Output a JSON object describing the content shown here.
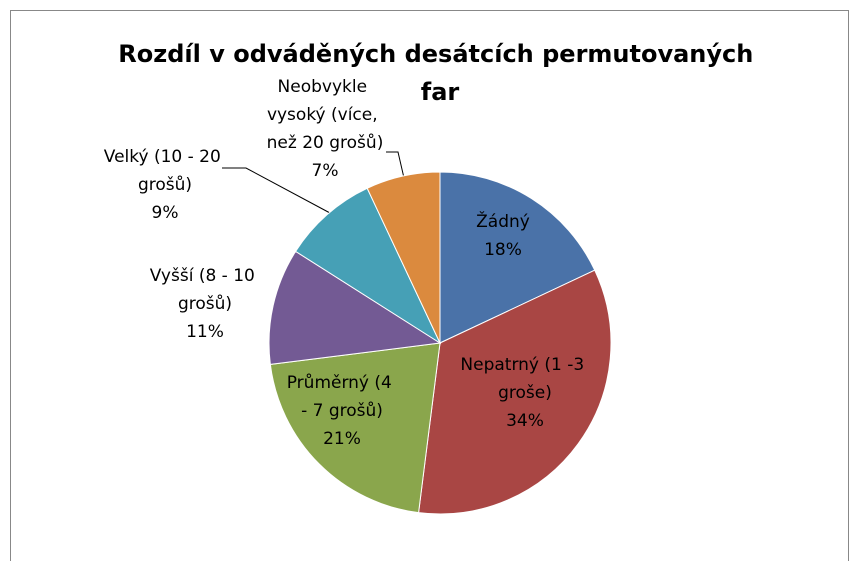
{
  "chart_data": {
    "type": "pie",
    "title": "Rozdíl v odváděných desátcích permutovaných far",
    "categories": [
      "Žádný",
      "Nepatrný (1 -3 groše)",
      "Průměrný (4 - 7 grošů)",
      "Vyšší (8 - 10 grošů)",
      "Velký (10 - 20 grošů)",
      "Neobvykle vysoký (více, než 20 grošů)"
    ],
    "values": [
      18,
      34,
      21,
      11,
      9,
      7
    ],
    "value_labels": [
      "18%",
      "34%",
      "21%",
      "11%",
      "9%",
      "7%"
    ],
    "colors": [
      "#4a72a8",
      "#a94644",
      "#8aa64c",
      "#735a94",
      "#46a0b6",
      "#db8a3e"
    ]
  }
}
